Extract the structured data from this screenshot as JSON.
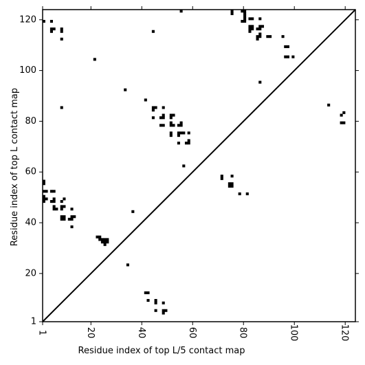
{
  "chart_data": {
    "type": "heatmap",
    "title": "",
    "xlabel": "Residue index of top L/5 contact map",
    "ylabel": "Residue index of top L contact map",
    "xlim": [
      1,
      124
    ],
    "ylim": [
      1,
      124
    ],
    "x_ticks": [
      1,
      20,
      40,
      60,
      80,
      100,
      120
    ],
    "y_ticks": [
      1,
      20,
      40,
      60,
      80,
      100,
      120
    ],
    "x_tick_labels": [
      "1",
      "20",
      "40",
      "60",
      "80",
      "100",
      "120"
    ],
    "y_tick_labels": [
      "1",
      "20",
      "40",
      "60",
      "80",
      "100",
      "120"
    ],
    "diagonal": true,
    "grid": false,
    "cell_color": "#000000",
    "series": [
      {
        "region": "upper-left",
        "points": [
          [
            1,
            119
          ],
          [
            4,
            119
          ],
          [
            4,
            116
          ],
          [
            4,
            115
          ],
          [
            5,
            116
          ],
          [
            8,
            116
          ],
          [
            8,
            115
          ],
          [
            8,
            112
          ],
          [
            8,
            85
          ],
          [
            21,
            104
          ],
          [
            33,
            92
          ],
          [
            41,
            88
          ],
          [
            44,
            115
          ],
          [
            44,
            85
          ],
          [
            44,
            84
          ],
          [
            45,
            85
          ],
          [
            44,
            81
          ],
          [
            47,
            81
          ],
          [
            48,
            82
          ],
          [
            48,
            81
          ],
          [
            48,
            85
          ],
          [
            47,
            78
          ],
          [
            48,
            78
          ],
          [
            51,
            82
          ],
          [
            52,
            82
          ],
          [
            51,
            81
          ],
          [
            51,
            79
          ],
          [
            51,
            78
          ],
          [
            52,
            78
          ],
          [
            51,
            75
          ],
          [
            51,
            74
          ],
          [
            54,
            78
          ],
          [
            55,
            79
          ],
          [
            55,
            78
          ],
          [
            54,
            75
          ],
          [
            55,
            75
          ],
          [
            56,
            75
          ],
          [
            54,
            74
          ],
          [
            54,
            71
          ],
          [
            57,
            71
          ],
          [
            58,
            71
          ],
          [
            58,
            72
          ],
          [
            58,
            75
          ],
          [
            55,
            123
          ],
          [
            56,
            62
          ],
          [
            75,
            123
          ],
          [
            75,
            122
          ],
          [
            79,
            123
          ],
          [
            80,
            123
          ],
          [
            80,
            122
          ],
          [
            80,
            121
          ],
          [
            80,
            120
          ],
          [
            79,
            119
          ],
          [
            80,
            119
          ],
          [
            82,
            120
          ],
          [
            83,
            120
          ],
          [
            86,
            120
          ],
          [
            82,
            117
          ],
          [
            83,
            117
          ],
          [
            82,
            116
          ],
          [
            83,
            116
          ],
          [
            82,
            115
          ],
          [
            85,
            116
          ],
          [
            86,
            116
          ],
          [
            86,
            117
          ],
          [
            87,
            117
          ],
          [
            86,
            114
          ],
          [
            85,
            113
          ],
          [
            86,
            113
          ],
          [
            85,
            112
          ],
          [
            89,
            113
          ],
          [
            90,
            113
          ],
          [
            95,
            113
          ],
          [
            96,
            109
          ],
          [
            97,
            109
          ],
          [
            96,
            105
          ],
          [
            97,
            105
          ],
          [
            99,
            105
          ],
          [
            86,
            95
          ],
          [
            113,
            86
          ],
          [
            119,
            83
          ],
          [
            118,
            82
          ],
          [
            118,
            79
          ],
          [
            119,
            79
          ]
        ]
      },
      {
        "region": "lower-right",
        "points": [
          [
            1,
            56
          ],
          [
            1,
            55
          ],
          [
            1,
            52
          ],
          [
            2,
            52
          ],
          [
            4,
            52
          ],
          [
            5,
            52
          ],
          [
            1,
            50
          ],
          [
            1,
            49
          ],
          [
            2,
            49
          ],
          [
            1,
            48
          ],
          [
            4,
            48
          ],
          [
            5,
            49
          ],
          [
            5,
            48
          ],
          [
            5,
            46
          ],
          [
            5,
            45
          ],
          [
            6,
            45
          ],
          [
            8,
            48
          ],
          [
            9,
            49
          ],
          [
            8,
            46
          ],
          [
            9,
            46
          ],
          [
            8,
            45
          ],
          [
            8,
            42
          ],
          [
            9,
            42
          ],
          [
            8,
            41
          ],
          [
            9,
            41
          ],
          [
            11,
            41
          ],
          [
            12,
            41
          ],
          [
            12,
            42
          ],
          [
            13,
            42
          ],
          [
            12,
            45
          ],
          [
            12,
            38
          ],
          [
            36,
            44
          ],
          [
            22,
            34
          ],
          [
            23,
            34
          ],
          [
            23,
            33
          ],
          [
            24,
            33
          ],
          [
            25,
            33
          ],
          [
            26,
            33
          ],
          [
            24,
            32
          ],
          [
            25,
            32
          ],
          [
            26,
            32
          ],
          [
            25,
            31
          ],
          [
            34,
            23
          ],
          [
            41,
            12
          ],
          [
            42,
            12
          ],
          [
            42,
            9
          ],
          [
            45,
            9
          ],
          [
            45,
            8
          ],
          [
            48,
            8
          ],
          [
            45,
            5
          ],
          [
            48,
            5
          ],
          [
            49,
            5
          ],
          [
            48,
            4
          ],
          [
            71,
            58
          ],
          [
            71,
            57
          ],
          [
            75,
            58
          ],
          [
            74,
            55
          ],
          [
            75,
            55
          ],
          [
            74,
            54
          ],
          [
            75,
            54
          ],
          [
            78,
            51
          ],
          [
            81,
            51
          ]
        ]
      }
    ]
  }
}
